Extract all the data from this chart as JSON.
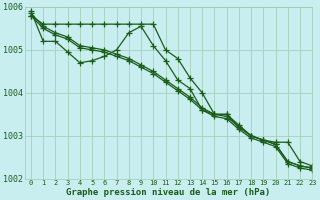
{
  "title": "Graphe pression niveau de la mer (hPa)",
  "background_color": "#c8eef0",
  "plot_bg_color": "#c8eef0",
  "grid_color": "#9ec9b0",
  "line_color": "#1a5c1a",
  "hours": [
    0,
    1,
    2,
    3,
    4,
    5,
    6,
    7,
    8,
    9,
    10,
    11,
    12,
    13,
    14,
    15,
    16,
    17,
    18,
    19,
    20,
    21,
    22,
    23
  ],
  "series": [
    [
      1005.8,
      1005.6,
      1005.6,
      1005.6,
      1005.6,
      1005.6,
      1005.6,
      1005.6,
      1005.6,
      1005.6,
      1005.6,
      1005.0,
      1004.8,
      1004.35,
      1004.0,
      1003.5,
      1003.5,
      1003.2,
      1003.0,
      1002.9,
      1002.85,
      1002.85,
      1002.4,
      1002.3
    ],
    [
      1005.9,
      1005.2,
      1005.2,
      1004.95,
      1004.7,
      1004.75,
      1004.85,
      1005.0,
      1005.4,
      1005.55,
      1005.1,
      1004.75,
      1004.3,
      1004.1,
      1003.6,
      1003.5,
      1003.5,
      1003.25,
      1003.0,
      1002.9,
      1002.8,
      1002.4,
      1002.3,
      1002.25
    ],
    [
      1005.85,
      1005.55,
      1005.4,
      1005.3,
      1005.1,
      1005.05,
      1005.0,
      1004.9,
      1004.8,
      1004.65,
      1004.5,
      1004.3,
      1004.1,
      1003.9,
      1003.65,
      1003.5,
      1003.45,
      1003.2,
      1003.0,
      1002.9,
      1002.8,
      1002.4,
      1002.3,
      1002.25
    ],
    [
      1005.8,
      1005.5,
      1005.35,
      1005.25,
      1005.05,
      1005.0,
      1004.95,
      1004.85,
      1004.75,
      1004.6,
      1004.45,
      1004.25,
      1004.05,
      1003.85,
      1003.6,
      1003.45,
      1003.4,
      1003.15,
      1002.95,
      1002.85,
      1002.75,
      1002.35,
      1002.25,
      1002.2
    ]
  ],
  "ylim": [
    1002.0,
    1006.0
  ],
  "xlim": [
    -0.5,
    23
  ],
  "marker": "+",
  "markersize": 4,
  "linewidth": 0.9
}
